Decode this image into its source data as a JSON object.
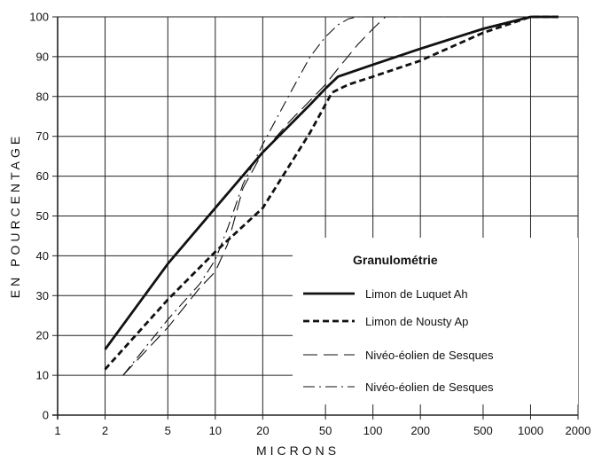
{
  "chart_data": {
    "type": "line",
    "title": "",
    "xlabel": "MICRONS",
    "ylabel": "EN POURCENTAGE",
    "x_scale": "log",
    "xlim": [
      1,
      2000
    ],
    "ylim": [
      0,
      100
    ],
    "grid": true,
    "x_ticks": [
      1,
      2,
      5,
      10,
      20,
      50,
      100,
      200,
      500,
      1000,
      2000
    ],
    "x_tick_labels": [
      "1",
      "2",
      "5",
      "10",
      "20",
      "50",
      "100",
      "200",
      "500",
      "1000",
      "2000"
    ],
    "y_ticks": [
      0,
      10,
      20,
      30,
      40,
      50,
      60,
      70,
      80,
      90,
      100
    ],
    "y_tick_labels": [
      "0",
      "10",
      "20",
      "30",
      "40",
      "50",
      "60",
      "70",
      "80",
      "90",
      "100"
    ],
    "legend": {
      "title": "Granulométrie",
      "placement": "lower-right"
    },
    "series": [
      {
        "name": "Limon de Luquet Ah",
        "style": "solid-thick",
        "x": [
          2,
          5,
          10,
          20,
          40,
          50,
          60,
          100,
          200,
          500,
          1000,
          1500
        ],
        "y": [
          16.5,
          38,
          52,
          66,
          78,
          82,
          85,
          88,
          92,
          97,
          100,
          100
        ]
      },
      {
        "name": "Limon de Nousty Ap",
        "style": "dashed-thick",
        "x": [
          2,
          5,
          10,
          20,
          40,
          50,
          55,
          70,
          100,
          200,
          500,
          1000,
          1500
        ],
        "y": [
          11.5,
          29,
          41,
          52,
          71,
          78,
          81,
          83,
          85,
          89,
          96,
          100,
          100
        ]
      },
      {
        "name": "Nivéo-éolien de Sesques",
        "style": "long-dash",
        "x": [
          2.6,
          5,
          8,
          10,
          12,
          15,
          20,
          30,
          40,
          50,
          60,
          80,
          100,
          120,
          150,
          300,
          1000
        ],
        "y": [
          10,
          22,
          32,
          36,
          43,
          57,
          66,
          74,
          79,
          83,
          87,
          93,
          97,
          100,
          100,
          100,
          100
        ]
      },
      {
        "name": "Nivéo-éolien de Sesques",
        "style": "dash-dot",
        "x": [
          2.6,
          5,
          8,
          10,
          12,
          15,
          20,
          30,
          40,
          50,
          60,
          70,
          80,
          100,
          200,
          1000
        ],
        "y": [
          10,
          24,
          33,
          39,
          47,
          58,
          68,
          81,
          90,
          95,
          98,
          99.5,
          100,
          100,
          100,
          100
        ]
      }
    ]
  }
}
